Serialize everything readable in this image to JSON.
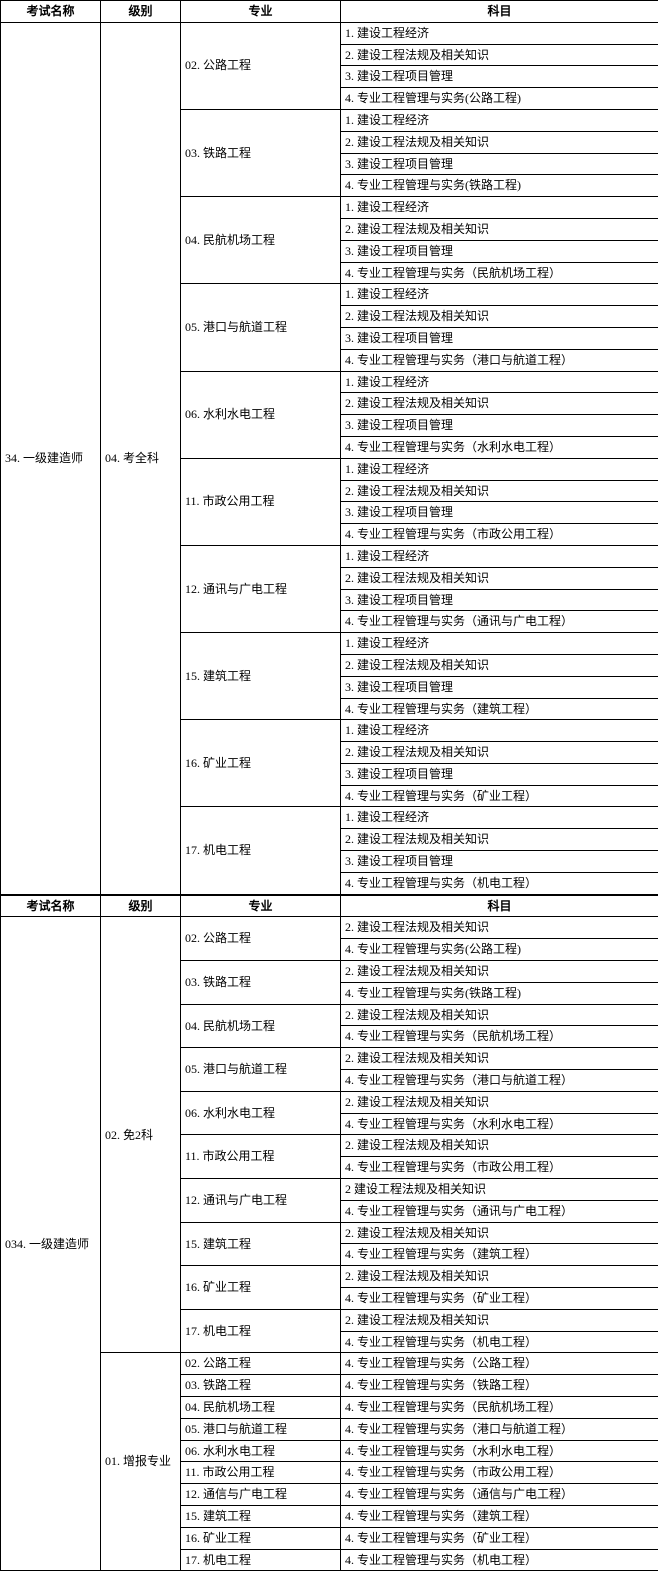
{
  "headers": {
    "exam": "考试名称",
    "level": "级别",
    "major": "专业",
    "subject": "科目"
  },
  "table1": {
    "exam": "34. 一级建造师",
    "level": "04. 考全科",
    "majors": [
      {
        "name": "02. 公路工程",
        "subjects": [
          "1. 建设工程经济",
          "2. 建设工程法规及相关知识",
          "3. 建设工程项目管理",
          "4. 专业工程管理与实务(公路工程)"
        ]
      },
      {
        "name": "03. 铁路工程",
        "subjects": [
          "1. 建设工程经济",
          "2. 建设工程法规及相关知识",
          "3. 建设工程项目管理",
          "4. 专业工程管理与实务(铁路工程)"
        ]
      },
      {
        "name": "04. 民航机场工程",
        "subjects": [
          "1. 建设工程经济",
          "2. 建设工程法规及相关知识",
          "3. 建设工程项目管理",
          "4. 专业工程管理与实务（民航机场工程）"
        ]
      },
      {
        "name": "05. 港口与航道工程",
        "subjects": [
          "1. 建设工程经济",
          "2. 建设工程法规及相关知识",
          "3. 建设工程项目管理",
          "4. 专业工程管理与实务（港口与航道工程）"
        ]
      },
      {
        "name": "06. 水利水电工程",
        "subjects": [
          "1. 建设工程经济",
          "2. 建设工程法规及相关知识",
          "3. 建设工程项目管理",
          "4. 专业工程管理与实务（水利水电工程）"
        ]
      },
      {
        "name": "11. 市政公用工程",
        "subjects": [
          "1. 建设工程经济",
          "2. 建设工程法规及相关知识",
          "3. 建设工程项目管理",
          "4. 专业工程管理与实务（市政公用工程）"
        ]
      },
      {
        "name": "12. 通讯与广电工程",
        "subjects": [
          "1. 建设工程经济",
          "2. 建设工程法规及相关知识",
          "3. 建设工程项目管理",
          "4. 专业工程管理与实务（通讯与广电工程）"
        ]
      },
      {
        "name": "15. 建筑工程",
        "subjects": [
          "1. 建设工程经济",
          "2. 建设工程法规及相关知识",
          "3. 建设工程项目管理",
          "4. 专业工程管理与实务（建筑工程）"
        ]
      },
      {
        "name": "16. 矿业工程",
        "subjects": [
          "1. 建设工程经济",
          "2. 建设工程法规及相关知识",
          "3. 建设工程项目管理",
          "4. 专业工程管理与实务（矿业工程）"
        ]
      },
      {
        "name": "17. 机电工程",
        "subjects": [
          "1. 建设工程经济",
          "2. 建设工程法规及相关知识",
          "3. 建设工程项目管理",
          "4. 专业工程管理与实务（机电工程）"
        ]
      }
    ]
  },
  "headers2": {
    "exam": "考试名称",
    "level": "级别",
    "major": "专业",
    "subject": "科目"
  },
  "table2": {
    "exam": "034. 一级建造师",
    "levelA": {
      "name": "02. 免2科",
      "majors": [
        {
          "name": "02. 公路工程",
          "subjects": [
            "2. 建设工程法规及相关知识",
            "4. 专业工程管理与实务(公路工程)"
          ]
        },
        {
          "name": "03. 铁路工程",
          "subjects": [
            "2. 建设工程法规及相关知识",
            "4. 专业工程管理与实务(铁路工程)"
          ]
        },
        {
          "name": "04. 民航机场工程",
          "subjects": [
            "2. 建设工程法规及相关知识",
            "4. 专业工程管理与实务（民航机场工程）"
          ]
        },
        {
          "name": "05. 港口与航道工程",
          "subjects": [
            "2. 建设工程法规及相关知识",
            "4. 专业工程管理与实务（港口与航道工程）"
          ]
        },
        {
          "name": "06. 水利水电工程",
          "subjects": [
            "2. 建设工程法规及相关知识",
            "4. 专业工程管理与实务（水利水电工程）"
          ]
        },
        {
          "name": "11. 市政公用工程",
          "subjects": [
            "2. 建设工程法规及相关知识",
            "4. 专业工程管理与实务（市政公用工程）"
          ]
        },
        {
          "name": "12. 通讯与广电工程",
          "subjects": [
            "2  建设工程法规及相关知识",
            "4. 专业工程管理与实务（通讯与广电工程）"
          ]
        },
        {
          "name": "15. 建筑工程",
          "subjects": [
            "2. 建设工程法规及相关知识",
            "4. 专业工程管理与实务（建筑工程）"
          ]
        },
        {
          "name": "16. 矿业工程",
          "subjects": [
            "2. 建设工程法规及相关知识",
            "4. 专业工程管理与实务（矿业工程）"
          ]
        },
        {
          "name": "17. 机电工程",
          "subjects": [
            "2. 建设工程法规及相关知识",
            "4. 专业工程管理与实务（机电工程）"
          ]
        }
      ]
    },
    "levelB": {
      "name": "01. 增报专业",
      "majors": [
        {
          "name": "02. 公路工程",
          "subjects": [
            "4. 专业工程管理与实务（公路工程）"
          ]
        },
        {
          "name": "03. 铁路工程",
          "subjects": [
            "4. 专业工程管理与实务（铁路工程）"
          ]
        },
        {
          "name": "04. 民航机场工程",
          "subjects": [
            "4. 专业工程管理与实务（民航机场工程）"
          ]
        },
        {
          "name": "05. 港口与航道工程",
          "subjects": [
            "4. 专业工程管理与实务（港口与航道工程）"
          ]
        },
        {
          "name": "06. 水利水电工程",
          "subjects": [
            "4. 专业工程管理与实务（水利水电工程）"
          ]
        },
        {
          "name": "11. 市政公用工程",
          "subjects": [
            "4. 专业工程管理与实务（市政公用工程）"
          ]
        },
        {
          "name": "12. 通信与广电工程",
          "subjects": [
            "4. 专业工程管理与实务（通信与广电工程）"
          ]
        },
        {
          "name": "15. 建筑工程",
          "subjects": [
            "4. 专业工程管理与实务（建筑工程）"
          ]
        },
        {
          "name": "16. 矿业工程",
          "subjects": [
            "4. 专业工程管理与实务（矿业工程）"
          ]
        },
        {
          "name": "17. 机电工程",
          "subjects": [
            "4. 专业工程管理与实务（机电工程）"
          ]
        }
      ]
    }
  }
}
